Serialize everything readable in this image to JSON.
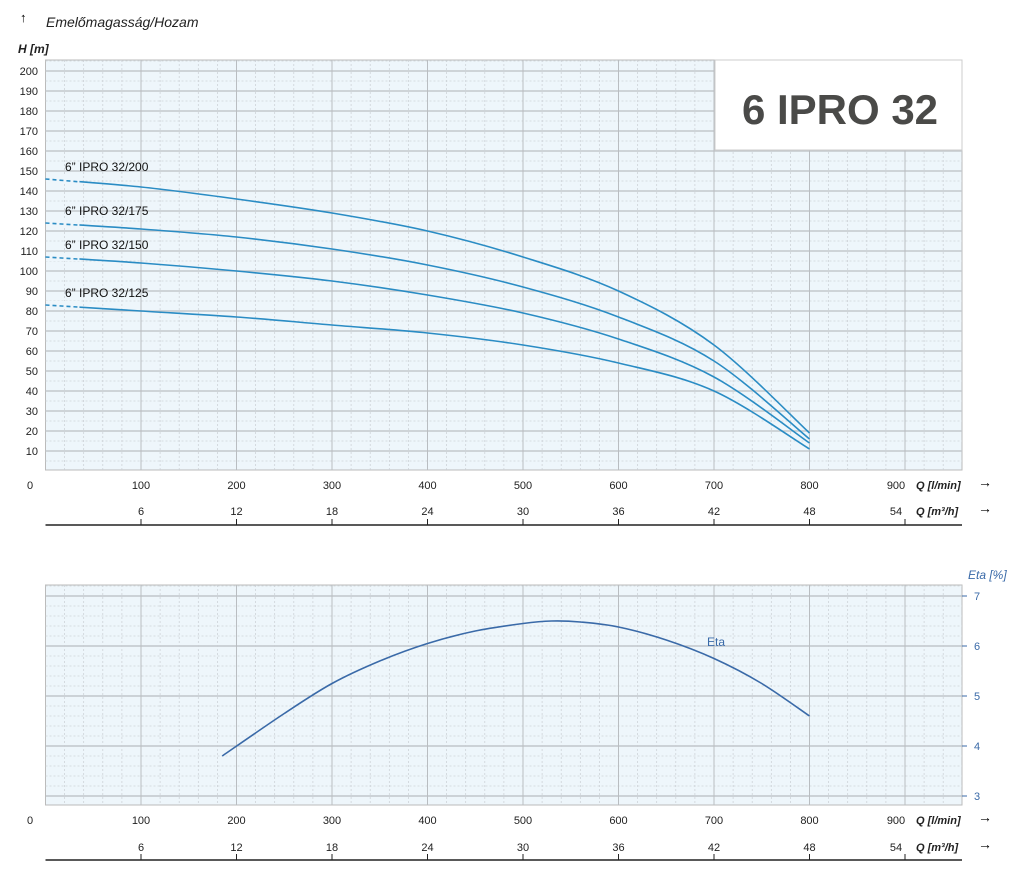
{
  "chart_data": [
    {
      "type": "line",
      "title": "Emelőmagasság/Hozam",
      "product_title": "6 IPRO 32",
      "ylabel": "H [m]",
      "xlabel": "Q [l/min]",
      "xlabel2": "Q [m³/h]",
      "xlim": [
        0,
        960
      ],
      "ylim": [
        0,
        205
      ],
      "xticks": [
        0,
        100,
        200,
        300,
        400,
        500,
        600,
        700,
        800,
        900
      ],
      "xticks2": [
        6,
        12,
        18,
        24,
        30,
        36,
        42,
        48,
        54
      ],
      "yticks": [
        10,
        20,
        30,
        40,
        50,
        60,
        70,
        80,
        90,
        100,
        110,
        120,
        130,
        140,
        150,
        160,
        170,
        180,
        190,
        200
      ],
      "grid": true,
      "line_color": "#2a8cc4",
      "x": [
        0,
        100,
        200,
        300,
        400,
        500,
        600,
        700,
        800
      ],
      "dashed_until_x": 35,
      "series": [
        {
          "name": "6” IPRO 32/200",
          "values": [
            146,
            142,
            136,
            129,
            120,
            107,
            90,
            63,
            19
          ]
        },
        {
          "name": "6” IPRO 32/175",
          "values": [
            124,
            121,
            117,
            111,
            103,
            92,
            77,
            55,
            16
          ]
        },
        {
          "name": "6” IPRO 32/150",
          "values": [
            107,
            104,
            100,
            95,
            88,
            79,
            66,
            47,
            14
          ]
        },
        {
          "name": "6” IPRO 32/125",
          "values": [
            83,
            80,
            77,
            73,
            69,
            63,
            54,
            40,
            11
          ]
        }
      ]
    },
    {
      "type": "line",
      "ylabel": "Eta [%]",
      "xlabel": "Q [l/min]",
      "xlabel2": "Q [m³/h]",
      "xlim": [
        0,
        960
      ],
      "ylim": [
        2.85,
        7.2
      ],
      "xticks": [
        0,
        100,
        200,
        300,
        400,
        500,
        600,
        700,
        800,
        900
      ],
      "xticks2": [
        6,
        12,
        18,
        24,
        30,
        36,
        42,
        48,
        54
      ],
      "yticks": [
        3,
        4,
        5,
        6,
        7
      ],
      "grid": true,
      "line_color": "#3a6aa8",
      "series": [
        {
          "name": "Eta",
          "x": [
            185,
            250,
            300,
            350,
            400,
            450,
            500,
            530,
            560,
            600,
            650,
            700,
            750,
            800
          ],
          "values": [
            3.8,
            4.65,
            5.25,
            5.7,
            6.05,
            6.3,
            6.45,
            6.5,
            6.48,
            6.38,
            6.12,
            5.75,
            5.25,
            4.6
          ]
        }
      ]
    }
  ]
}
